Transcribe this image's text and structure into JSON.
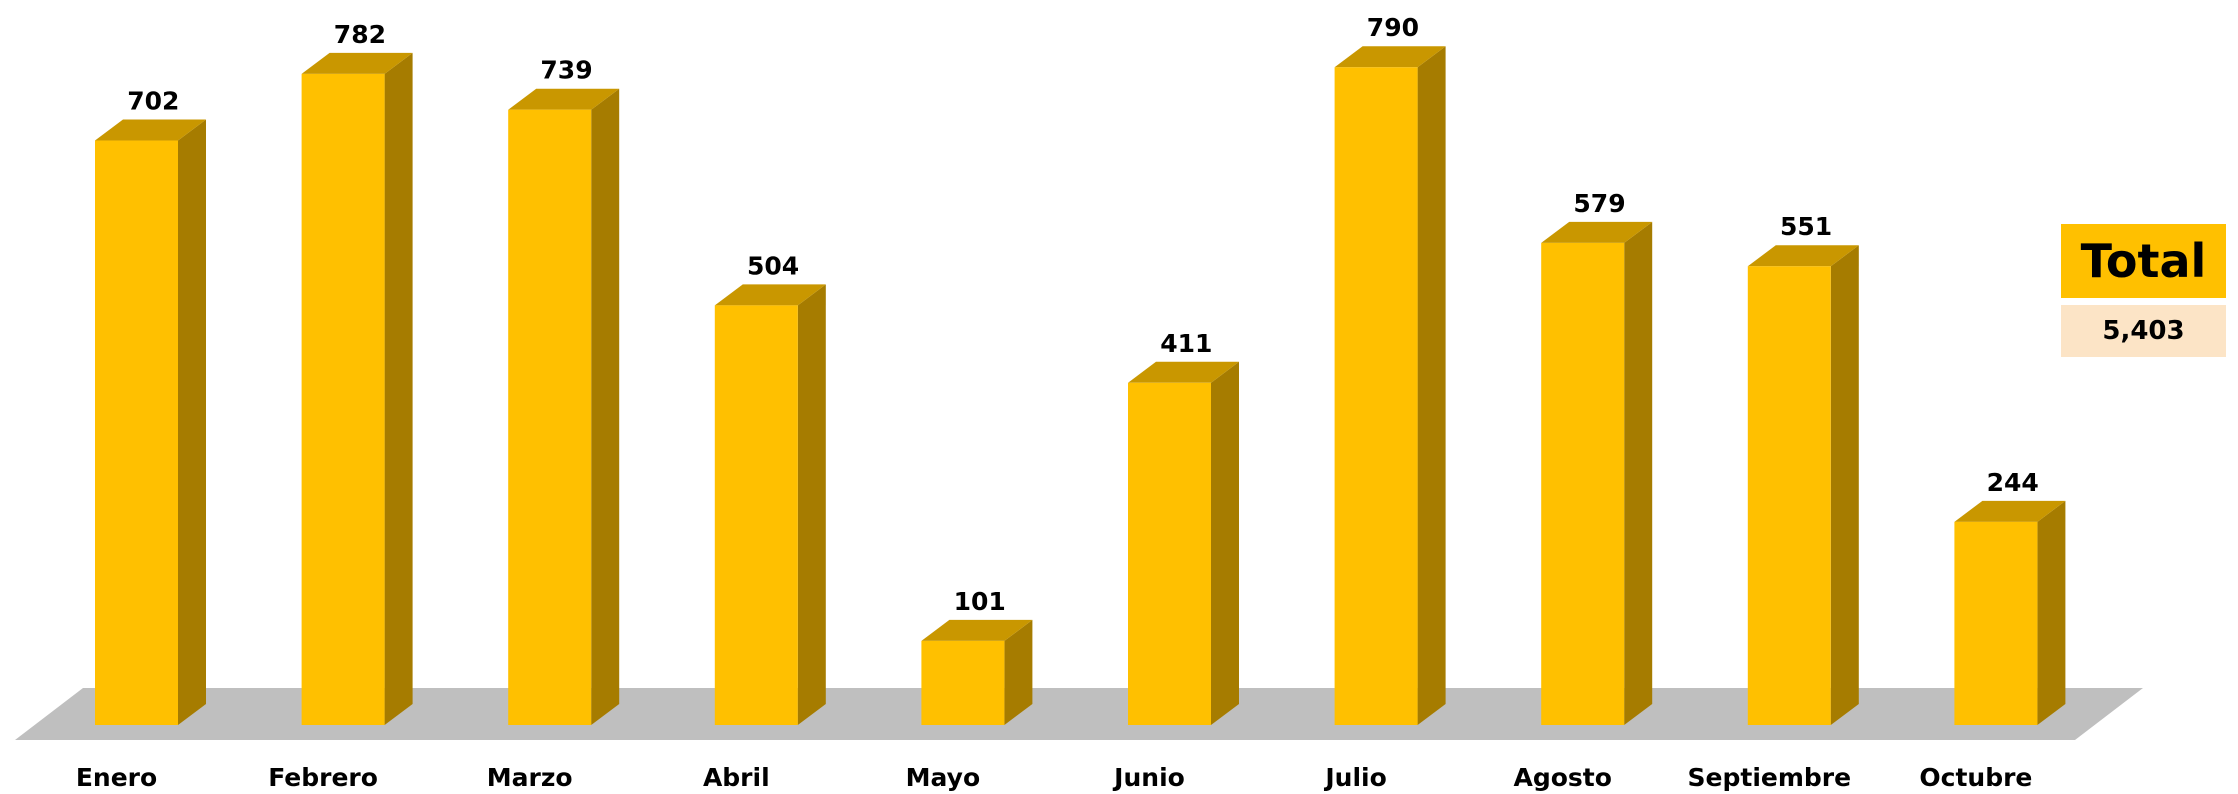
{
  "chart_data": {
    "type": "bar",
    "style": "3d-column",
    "categories": [
      "Enero",
      "Febrero",
      "Marzo",
      "Abril",
      "Mayo",
      "Junio",
      "Julio",
      "Agosto",
      "Septiembre",
      "Octubre"
    ],
    "series": [
      {
        "values": [
          702,
          782,
          739,
          504,
          101,
          411,
          790,
          579,
          551,
          244
        ]
      }
    ],
    "data_labels": [
      "702",
      "782",
      "739",
      "504",
      "101",
      "411",
      "790",
      "579",
      "551",
      "244"
    ],
    "title": "",
    "xlabel": "",
    "ylabel": "",
    "ylim": [
      0,
      800
    ],
    "grid": false,
    "legend": "none",
    "colors": {
      "bar_front": "#FFC000",
      "bar_side": "#A67C00",
      "bar_top": "#C99700",
      "floor": "#BFBFBF",
      "labels": "#000000"
    }
  },
  "total": {
    "label": "Total",
    "value": "5,403",
    "label_bg": "#FFC000",
    "value_bg": "#FCE4C6"
  }
}
